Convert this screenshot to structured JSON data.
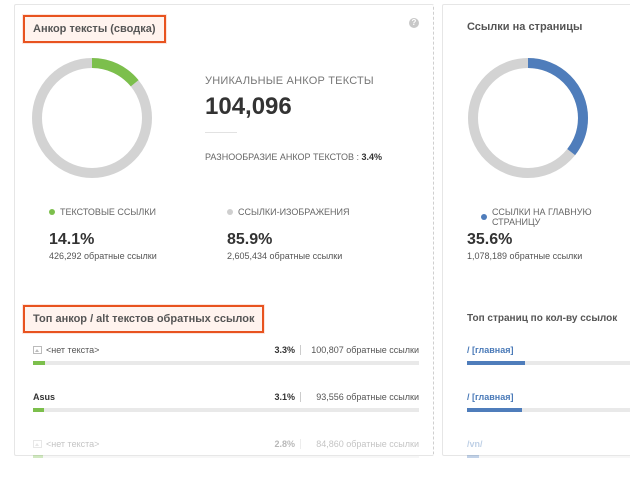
{
  "left_panel": {
    "title": "Анкор тексты (сводка)",
    "help_icon_glyph": "?",
    "kpi_label": "УНИКАЛЬНЫЕ АНКОР ТЕКСТЫ",
    "kpi_value": "104,096",
    "diversity_label": "РАЗНООБРАЗИЕ АНКОР ТЕКСТОВ :",
    "diversity_value": "3.4%",
    "donut": {
      "fraction_green": 0.141,
      "green": "#7cbf4c",
      "gray": "#d3d3d3"
    },
    "legend": [
      {
        "label": "ТЕКСТОВЫЕ ССЫЛКИ",
        "color": "#7cbf4c",
        "pct": "14.1%",
        "count": "426,292 обратные ссылки"
      },
      {
        "label": "ССЫЛКИ-ИЗОБРАЖЕНИЯ",
        "color": "#cfcfcf",
        "pct": "85.9%",
        "count": "2,605,434 обратные ссылки"
      }
    ],
    "top_title": "Топ анкор / alt текстов обратных ссылок",
    "rows": [
      {
        "name": "<нет текста>",
        "icon": "image-icon",
        "pct": "3.3%",
        "count": "100,807 обратные ссылки",
        "fill": 0.033
      },
      {
        "name": "Asus",
        "icon": "",
        "pct": "3.1%",
        "count": "93,556 обратные ссылки",
        "fill": 0.031
      },
      {
        "name": "<нет текста>",
        "icon": "image-icon",
        "pct": "2.8%",
        "count": "84,860 обратные ссылки",
        "fill": 0.028
      }
    ]
  },
  "right_panel": {
    "title": "Ссылки на страницы",
    "donut": {
      "fraction_blue": 0.356,
      "blue": "#4f7dbb",
      "gray": "#d3d3d3"
    },
    "legend_label": "ССЫЛКИ НА ГЛАВНУЮ СТРАНИЦУ",
    "legend_color": "#4f7dbb",
    "pct": "35.6%",
    "count": "1,078,189 обратные ссылки",
    "top_title": "Топ страниц по кол-ву ссылок",
    "pages": [
      {
        "link": "/ [главная]",
        "fill": 0.356
      },
      {
        "link": "/ [главная]",
        "fill": 0.33
      },
      {
        "link": "/vn/",
        "fill": 0.08
      }
    ]
  }
}
